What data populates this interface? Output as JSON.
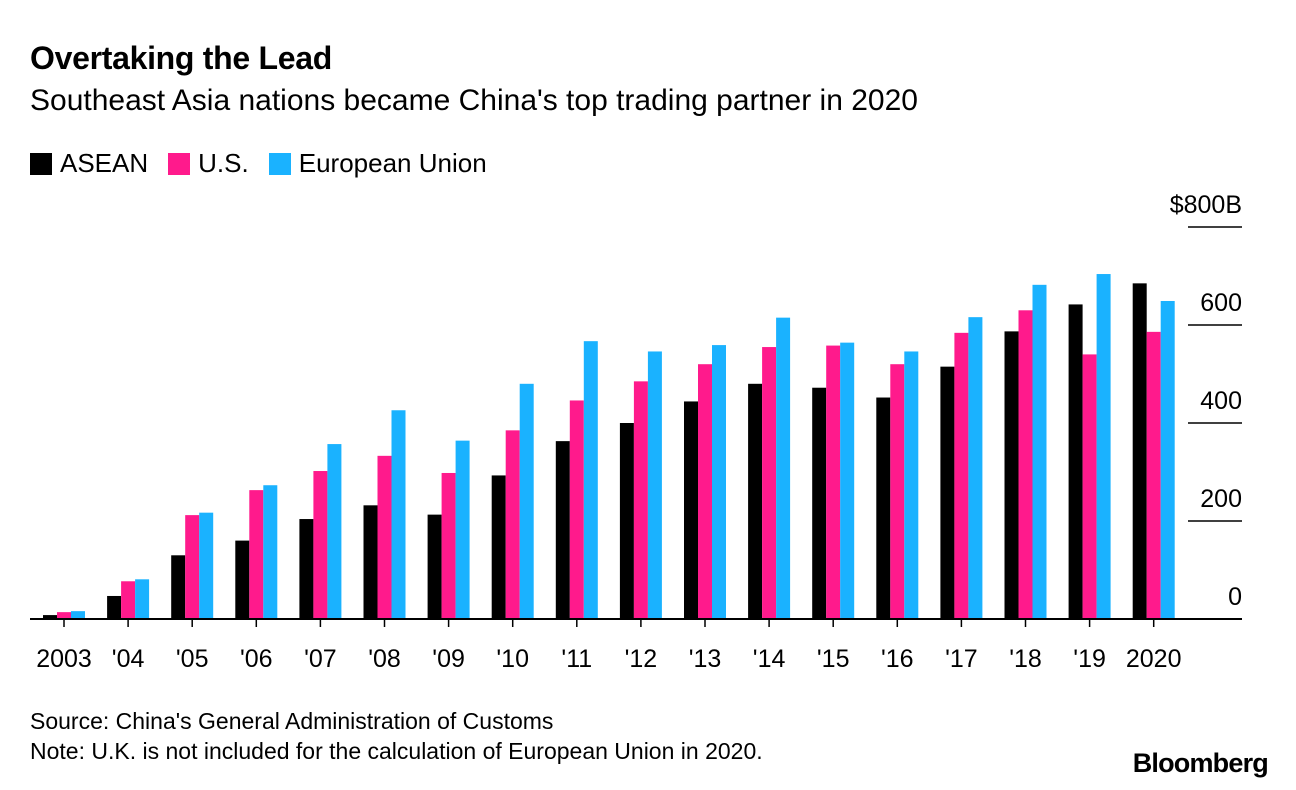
{
  "chart_data": {
    "type": "bar",
    "title": "Overtaking the Lead",
    "subtitle": "Southeast Asia nations became China's top trading partner in 2020",
    "categories": [
      "2003",
      "'04",
      "'05",
      "'06",
      "'07",
      "'08",
      "'09",
      "'10",
      "'11",
      "'12",
      "'13",
      "'14",
      "'15",
      "'16",
      "'17",
      "'18",
      "'19",
      "2020"
    ],
    "series": [
      {
        "name": "ASEAN",
        "color": "#000000",
        "values": [
          8,
          47,
          130,
          160,
          204,
          232,
          213,
          293,
          363,
          400,
          444,
          480,
          472,
          452,
          515,
          587,
          642,
          685
        ]
      },
      {
        "name": "U.S.",
        "color": "#ff1a8c",
        "values": [
          14,
          77,
          212,
          263,
          302,
          333,
          298,
          385,
          446,
          485,
          520,
          555,
          558,
          520,
          584,
          630,
          540,
          586
        ]
      },
      {
        "name": "European Union",
        "color": "#1ab2ff",
        "values": [
          16,
          81,
          217,
          273,
          357,
          426,
          364,
          480,
          567,
          546,
          559,
          615,
          564,
          546,
          616,
          682,
          704,
          649
        ]
      }
    ],
    "ylim": [
      0,
      800
    ],
    "y_ticks": [
      "0",
      "200",
      "400",
      "600",
      "$800B"
    ],
    "y_tick_values": [
      0,
      200,
      400,
      600,
      800
    ],
    "y_axis_position": "right",
    "grid": false,
    "legend_position": "top-left"
  },
  "footer": {
    "source": "Source: China's General Administration of Customs",
    "note": "Note: U.K. is not included for the calculation of European Union in 2020.",
    "brand": "Bloomberg"
  }
}
